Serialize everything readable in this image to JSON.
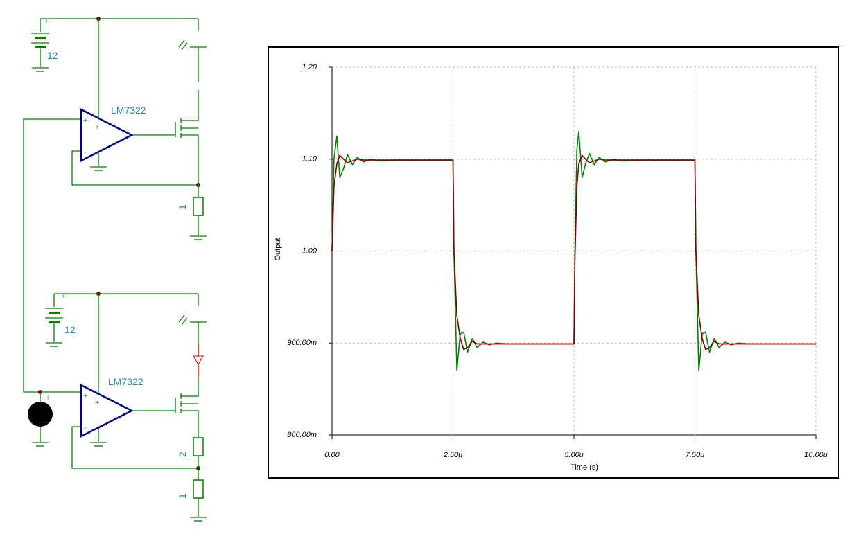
{
  "schematic": {
    "top": {
      "battery_label": "12",
      "opamp_label": "LM7322",
      "resistor_label": "1"
    },
    "bottom": {
      "battery_label": "12",
      "opamp_label": "LM7322",
      "resistor_upper_label": "2",
      "resistor_lower_label": "1"
    },
    "symbols": {
      "plus": "+",
      "minus": "-"
    }
  },
  "chart_data": {
    "type": "line",
    "x_label": "Time (s)",
    "y_label": "Output",
    "x": [
      0,
      4e-08,
      1e-07,
      1.6e-07,
      2.4e-07,
      3.2e-07,
      4.2e-07,
      5.2e-07,
      6.5e-07,
      8e-07,
      1e-06,
      1.3e-06,
      2.5e-06,
      2.52e-06,
      2.58e-06,
      2.65e-06,
      2.72e-06,
      2.8e-06,
      2.9e-06,
      3e-06,
      3.12e-06,
      3.25e-06,
      3.4e-06,
      3.6e-06,
      3.9e-06,
      4.98e-06,
      5e-06,
      5.02e-06,
      5.06e-06,
      5.1e-06,
      5.17e-06,
      5.24e-06,
      5.32e-06,
      5.42e-06,
      5.52e-06,
      5.65e-06,
      5.8e-06,
      6e-06,
      6.3e-06,
      7.5e-06,
      7.52e-06,
      7.58e-06,
      7.65e-06,
      7.72e-06,
      7.8e-06,
      7.9e-06,
      8e-06,
      8.12e-06,
      8.25e-06,
      8.4e-06,
      8.6e-06,
      8.9e-06,
      1e-05
    ],
    "series": [
      {
        "color": "#008000",
        "values": [
          1.0,
          1.1,
          1.125,
          1.08,
          1.09,
          1.105,
          1.094,
          1.102,
          1.097,
          1.1,
          1.098,
          1.099,
          1.099,
          1.0,
          0.87,
          0.91,
          0.912,
          0.89,
          0.905,
          0.895,
          0.901,
          0.898,
          0.9,
          0.899,
          0.899,
          0.899,
          0.899,
          1.0,
          1.11,
          1.13,
          1.08,
          1.095,
          1.106,
          1.094,
          1.102,
          1.097,
          1.1,
          1.098,
          1.099,
          1.099,
          1.0,
          0.87,
          0.91,
          0.912,
          0.89,
          0.905,
          0.895,
          0.901,
          0.898,
          0.9,
          0.899,
          0.899,
          0.899
        ]
      },
      {
        "color": "#800000",
        "values": [
          1.0,
          1.07,
          1.095,
          1.104,
          1.1,
          1.096,
          1.098,
          1.1,
          1.099,
          1.099,
          1.099,
          1.099,
          1.099,
          1.0,
          0.93,
          0.905,
          0.893,
          0.895,
          0.902,
          0.899,
          0.899,
          0.899,
          0.899,
          0.899,
          0.899,
          0.899,
          0.899,
          0.99,
          1.07,
          1.095,
          1.104,
          1.1,
          1.096,
          1.098,
          1.1,
          1.099,
          1.099,
          1.099,
          1.099,
          1.099,
          1.0,
          0.93,
          0.905,
          0.893,
          0.895,
          0.902,
          0.899,
          0.899,
          0.899,
          0.899,
          0.899,
          0.899,
          0.899
        ]
      }
    ],
    "xlim": [
      0,
      1e-05
    ],
    "xticks": [
      {
        "value": 0,
        "label": "0.00"
      },
      {
        "value": 2.5e-06,
        "label": "2.50u"
      },
      {
        "value": 5e-06,
        "label": "5.00u"
      },
      {
        "value": 7.5e-06,
        "label": "7.50u"
      },
      {
        "value": 1e-05,
        "label": "10.00u"
      }
    ],
    "ylim": [
      0.8,
      1.2
    ],
    "yticks": [
      {
        "value": 0.8,
        "label": "800.00m"
      },
      {
        "value": 0.9,
        "label": "900.00m"
      },
      {
        "value": 1.0,
        "label": "1.00"
      },
      {
        "value": 1.1,
        "label": "1.10"
      },
      {
        "value": 1.2,
        "label": "1.20"
      }
    ],
    "grid": true
  }
}
